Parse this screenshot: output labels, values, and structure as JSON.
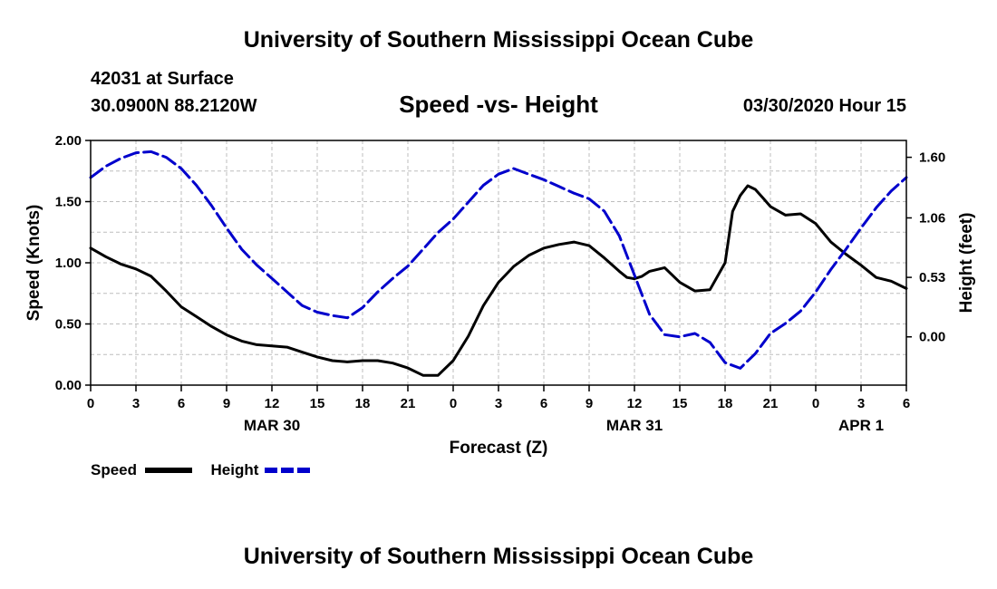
{
  "header": {
    "title": "University of Southern Mississippi Ocean Cube",
    "station": "42031 at Surface",
    "coords": "30.0900N 88.2120W",
    "datetime": "03/30/2020 Hour 15",
    "footer_title": "University of Southern Mississippi Ocean Cube"
  },
  "chart_data": {
    "type": "line",
    "title": "Speed -vs- Height",
    "xlabel": "Forecast (Z)",
    "ylabel_left": "Speed (Knots)",
    "ylabel_right": "Height (feet)",
    "xlim": [
      0,
      54
    ],
    "ylim_left": [
      0,
      2.0
    ],
    "ylim_right": [
      -0.43,
      1.75
    ],
    "left_ticks": [
      "0.00",
      "0.50",
      "1.00",
      "1.50",
      "2.00"
    ],
    "right_ticks": [
      "0.00",
      "0.53",
      "1.06",
      "1.60"
    ],
    "right_tick_values": [
      0.0,
      0.53,
      1.06,
      1.6
    ],
    "x_tick_labels": [
      "0",
      "3",
      "6",
      "9",
      "12",
      "15",
      "18",
      "21",
      "0",
      "3",
      "6",
      "9",
      "12",
      "15",
      "18",
      "21",
      "0",
      "3",
      "6"
    ],
    "date_labels": [
      {
        "label": "MAR 30",
        "x": 12
      },
      {
        "label": "MAR 31",
        "x": 36
      },
      {
        "label": "APR 1",
        "x": 51
      }
    ],
    "grid": true,
    "series": [
      {
        "name": "Speed",
        "axis": "left",
        "color": "#000000",
        "style": "solid",
        "x": [
          0,
          1,
          2,
          3,
          4,
          5,
          6,
          7,
          8,
          9,
          10,
          11,
          12,
          13,
          14,
          15,
          16,
          17,
          18,
          19,
          20,
          21,
          22,
          23,
          24,
          25,
          26,
          27,
          28,
          29,
          30,
          31,
          32,
          33,
          34,
          35,
          35.5,
          36,
          36.5,
          37,
          38,
          39,
          40,
          41,
          42,
          42.5,
          43,
          43.5,
          44,
          44.5,
          45,
          46,
          47,
          48,
          49,
          50,
          51,
          52,
          53,
          54
        ],
        "values": [
          1.12,
          1.05,
          0.99,
          0.95,
          0.89,
          0.77,
          0.64,
          0.56,
          0.48,
          0.41,
          0.36,
          0.33,
          0.32,
          0.31,
          0.27,
          0.23,
          0.2,
          0.19,
          0.2,
          0.2,
          0.18,
          0.14,
          0.08,
          0.08,
          0.2,
          0.4,
          0.65,
          0.84,
          0.97,
          1.06,
          1.12,
          1.15,
          1.17,
          1.14,
          1.04,
          0.93,
          0.88,
          0.87,
          0.89,
          0.93,
          0.96,
          0.84,
          0.77,
          0.78,
          1.0,
          1.42,
          1.55,
          1.63,
          1.6,
          1.53,
          1.46,
          1.39,
          1.4,
          1.32,
          1.17,
          1.07,
          0.98,
          0.88,
          0.85,
          0.79
        ]
      },
      {
        "name": "Height",
        "axis": "right",
        "color": "#0000cc",
        "style": "dashed",
        "x": [
          0,
          1,
          2,
          3,
          4,
          5,
          6,
          7,
          8,
          9,
          10,
          11,
          12,
          13,
          14,
          15,
          16,
          17,
          18,
          19,
          20,
          21,
          22,
          23,
          24,
          25,
          26,
          27,
          28,
          29,
          30,
          31,
          32,
          33,
          34,
          35,
          36,
          37,
          38,
          39,
          40,
          41,
          42,
          43,
          44,
          45,
          46,
          47,
          48,
          49,
          50,
          51,
          52,
          53,
          54
        ],
        "values": [
          1.42,
          1.52,
          1.59,
          1.64,
          1.65,
          1.6,
          1.5,
          1.35,
          1.17,
          0.97,
          0.78,
          0.64,
          0.52,
          0.4,
          0.28,
          0.22,
          0.19,
          0.17,
          0.26,
          0.4,
          0.52,
          0.63,
          0.78,
          0.93,
          1.05,
          1.2,
          1.35,
          1.45,
          1.5,
          1.45,
          1.4,
          1.34,
          1.28,
          1.23,
          1.12,
          0.9,
          0.55,
          0.2,
          0.02,
          0.0,
          0.03,
          -0.05,
          -0.23,
          -0.28,
          -0.15,
          0.03,
          0.12,
          0.23,
          0.4,
          0.6,
          0.78,
          0.97,
          1.15,
          1.3,
          1.42
        ]
      }
    ]
  },
  "legend": {
    "speed_label": "Speed",
    "height_label": "Height"
  }
}
